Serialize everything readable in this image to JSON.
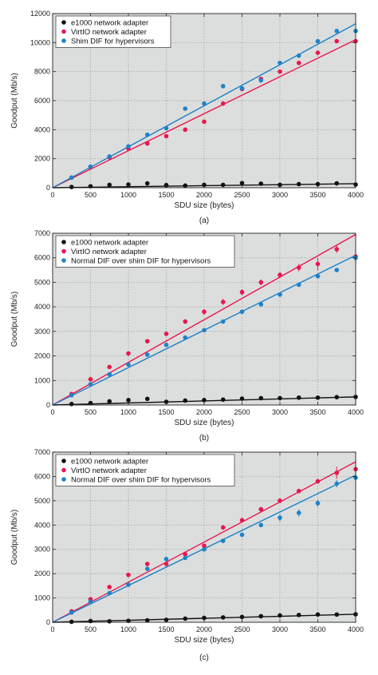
{
  "colors": {
    "e1000": "#111111",
    "virtio": "#e8174f",
    "shim": "#1f82c8",
    "plot_bg": "#dcdedd",
    "grid": "#9a9a9a"
  },
  "chart_data": [
    {
      "type": "scatter",
      "xlabel": "SDU size (bytes)",
      "ylabel": "Goodput (Mb/s)",
      "caption": "(a)",
      "xlim": [
        0,
        4000
      ],
      "ylim": [
        0,
        12000
      ],
      "xticks": [
        0,
        500,
        1000,
        1500,
        2000,
        2500,
        3000,
        3500,
        4000
      ],
      "yticks": [
        0,
        2000,
        4000,
        6000,
        8000,
        10000,
        12000
      ],
      "grid": true,
      "legend_position": "top-left",
      "series": [
        {
          "name": "e1000 network adapter",
          "color_key": "e1000",
          "x": [
            250,
            500,
            750,
            1000,
            1250,
            1500,
            1750,
            2000,
            2250,
            2500,
            2750,
            3000,
            3250,
            3500,
            3750,
            4000
          ],
          "y": [
            50,
            100,
            200,
            220,
            300,
            180,
            150,
            200,
            200,
            320,
            280,
            200,
            250,
            250,
            300,
            220
          ],
          "fit": [
            [
              0,
              0
            ],
            [
              4000,
              280
            ]
          ]
        },
        {
          "name": "VirtIO network adapter",
          "color_key": "virtio",
          "x": [
            250,
            500,
            750,
            1000,
            1250,
            1500,
            1750,
            2000,
            2250,
            2500,
            2750,
            3000,
            3250,
            3500,
            3750,
            4000
          ],
          "y": [
            700,
            1400,
            2100,
            2700,
            3050,
            3550,
            4000,
            4550,
            5800,
            6800,
            7500,
            8000,
            8600,
            9300,
            10100,
            10100
          ],
          "fit": [
            [
              0,
              0
            ],
            [
              4000,
              10200
            ]
          ]
        },
        {
          "name": "Shim DIF for hypervisors",
          "color_key": "shim",
          "x": [
            250,
            500,
            750,
            1000,
            1250,
            1500,
            1750,
            2000,
            2250,
            2500,
            2750,
            3000,
            3250,
            3500,
            3750,
            4000
          ],
          "y": [
            700,
            1450,
            2150,
            2850,
            3650,
            4100,
            5450,
            5800,
            7000,
            6850,
            7400,
            8600,
            9100,
            10100,
            10800,
            10800
          ],
          "fit": [
            [
              0,
              0
            ],
            [
              4000,
              11300
            ]
          ]
        }
      ]
    },
    {
      "type": "scatter",
      "xlabel": "SDU size (bytes)",
      "ylabel": "Goodput (Mb/s)",
      "caption": "(b)",
      "xlim": [
        0,
        4000
      ],
      "ylim": [
        0,
        7000
      ],
      "xticks": [
        0,
        500,
        1000,
        1500,
        2000,
        2500,
        3000,
        3500,
        4000
      ],
      "yticks": [
        0,
        1000,
        2000,
        3000,
        4000,
        5000,
        6000,
        7000
      ],
      "grid": true,
      "legend_position": "top-left",
      "series": [
        {
          "name": "e1000 network adapter",
          "color_key": "e1000",
          "x": [
            250,
            500,
            750,
            1000,
            1250,
            1500,
            1750,
            2000,
            2250,
            2500,
            2750,
            3000,
            3250,
            3500,
            3750,
            4000
          ],
          "y": [
            40,
            80,
            150,
            200,
            250,
            130,
            180,
            200,
            220,
            260,
            280,
            280,
            300,
            300,
            320,
            330
          ],
          "fit": [
            [
              0,
              0
            ],
            [
              4000,
              330
            ]
          ]
        },
        {
          "name": "VirtIO network adapter",
          "color_key": "virtio",
          "x": [
            250,
            500,
            750,
            1000,
            1250,
            1500,
            1750,
            2000,
            2250,
            2500,
            2750,
            3000,
            3250,
            3500,
            3750,
            4000
          ],
          "y": [
            450,
            1050,
            1550,
            2100,
            2600,
            2900,
            3400,
            3800,
            4200,
            4600,
            5000,
            5300,
            5600,
            5750,
            6350,
            6050
          ],
          "err": [
            0,
            0,
            0,
            0,
            0,
            0,
            100,
            120,
            120,
            120,
            120,
            120,
            150,
            250,
            150,
            300
          ],
          "fit": [
            [
              0,
              0
            ],
            [
              4000,
              6950
            ]
          ]
        },
        {
          "name": "Normal DIF over shim DIF for hypervisors",
          "color_key": "shim",
          "x": [
            250,
            500,
            750,
            1000,
            1250,
            1500,
            1750,
            2000,
            2250,
            2500,
            2750,
            3000,
            3250,
            3500,
            3750,
            4000
          ],
          "y": [
            400,
            850,
            1250,
            1650,
            2050,
            2450,
            2750,
            3050,
            3400,
            3800,
            4100,
            4500,
            4900,
            5250,
            5500,
            6000
          ],
          "fit": [
            [
              0,
              0
            ],
            [
              4000,
              6100
            ]
          ]
        }
      ]
    },
    {
      "type": "scatter",
      "xlabel": "SDU size (bytes)",
      "ylabel": "Goodput (Mb/s)",
      "caption": "(c)",
      "xlim": [
        0,
        4000
      ],
      "ylim": [
        0,
        7000
      ],
      "xticks": [
        0,
        500,
        1000,
        1500,
        2000,
        2500,
        3000,
        3500,
        4000
      ],
      "yticks": [
        0,
        1000,
        2000,
        3000,
        4000,
        5000,
        6000,
        7000
      ],
      "grid": true,
      "legend_position": "top-left",
      "series": [
        {
          "name": "e1000 network adapter",
          "color_key": "e1000",
          "x": [
            250,
            500,
            750,
            1000,
            1250,
            1500,
            1750,
            2000,
            2250,
            2500,
            2750,
            3000,
            3250,
            3500,
            3750,
            4000
          ],
          "y": [
            20,
            50,
            40,
            60,
            80,
            100,
            150,
            180,
            200,
            220,
            250,
            280,
            300,
            320,
            320,
            330
          ],
          "fit": [
            [
              0,
              0
            ],
            [
              4000,
              330
            ]
          ]
        },
        {
          "name": "VirtIO network adapter",
          "color_key": "virtio",
          "x": [
            250,
            500,
            750,
            1000,
            1250,
            1500,
            1750,
            2000,
            2250,
            2500,
            2750,
            3000,
            3250,
            3500,
            3750,
            4000
          ],
          "y": [
            450,
            950,
            1450,
            1950,
            2400,
            2400,
            2800,
            3150,
            3900,
            4200,
            4650,
            5000,
            5400,
            5800,
            6150,
            6300
          ],
          "err": [
            0,
            0,
            0,
            0,
            0,
            0,
            80,
            80,
            80,
            80,
            80,
            80,
            80,
            100,
            250,
            350
          ],
          "fit": [
            [
              0,
              0
            ],
            [
              4000,
              6600
            ]
          ]
        },
        {
          "name": "Normal DIF over shim DIF for hypervisors",
          "color_key": "shim",
          "x": [
            250,
            500,
            750,
            1000,
            1250,
            1500,
            1750,
            2000,
            2250,
            2500,
            2750,
            3000,
            3250,
            3500,
            3750,
            4000
          ],
          "y": [
            400,
            850,
            1200,
            1550,
            2200,
            2600,
            2650,
            3000,
            3350,
            3600,
            4000,
            4300,
            4500,
            4900,
            5700,
            5950
          ],
          "err": [
            0,
            0,
            0,
            0,
            0,
            0,
            0,
            0,
            0,
            0,
            0,
            150,
            150,
            150,
            150,
            150
          ],
          "fit": [
            [
              0,
              0
            ],
            [
              4000,
              6050
            ]
          ]
        }
      ]
    }
  ]
}
